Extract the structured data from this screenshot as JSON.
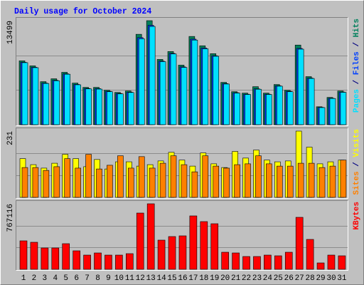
{
  "chart_data": [
    {
      "type": "bar",
      "title": "Daily usage for October 2024",
      "ylim": [
        0,
        13499
      ],
      "yticks": [
        13499
      ],
      "grid": true,
      "legend_separator": " / ",
      "series": [
        {
          "name": "Hits",
          "color": "#00805c",
          "values": [
            8286,
            7634,
            5586,
            5958,
            6796,
            5400,
            4841,
            4841,
            4469,
            4189,
            4375,
            11730,
            13499,
            8472,
            9496,
            7727,
            11451,
            10241,
            9216,
            5493,
            4282,
            4096,
            4934,
            4096,
            5213,
            4469,
            10334,
            6237,
            2327,
            3538,
            4375
          ]
        },
        {
          "name": "Files",
          "color": "#0040ff",
          "values": [
            8100,
            7450,
            5400,
            5760,
            6600,
            5230,
            4700,
            4680,
            4330,
            4050,
            4230,
            11300,
            12900,
            8250,
            9250,
            7500,
            11100,
            9950,
            8950,
            5330,
            4150,
            3960,
            4650,
            3960,
            5050,
            4330,
            9900,
            6050,
            2250,
            3430,
            4240
          ]
        },
        {
          "name": "Pages",
          "color": "#00e0ff",
          "values": [
            8050,
            7400,
            5350,
            5700,
            6550,
            5180,
            4650,
            4620,
            4280,
            4000,
            4180,
            11150,
            12750,
            8180,
            9180,
            7430,
            10980,
            9850,
            8880,
            5280,
            4100,
            3920,
            4600,
            3920,
            5000,
            4280,
            9800,
            6000,
            2220,
            3400,
            4200
          ]
        }
      ]
    },
    {
      "type": "bar",
      "ylim": [
        0,
        231
      ],
      "yticks": [
        231
      ],
      "grid": true,
      "legend_separator": " / ",
      "series": [
        {
          "name": "Visits",
          "color": "#ffff00",
          "values": [
            135,
            114,
            102,
            119,
            150,
            135,
            107,
            132,
            99,
            124,
            124,
            109,
            114,
            127,
            157,
            130,
            109,
            155,
            117,
            104,
            160,
            137,
            165,
            130,
            124,
            127,
            231,
            175,
            117,
            124,
            130
          ]
        },
        {
          "name": "Sites",
          "color": "#ff8000",
          "values": [
            104,
            104,
            94,
            107,
            135,
            102,
            150,
            99,
            112,
            145,
            102,
            142,
            102,
            119,
            145,
            114,
            89,
            145,
            109,
            102,
            114,
            117,
            145,
            117,
            109,
            109,
            119,
            119,
            104,
            109,
            130
          ]
        }
      ]
    },
    {
      "type": "bar",
      "ylim": [
        0,
        767116
      ],
      "yticks": [
        767116
      ],
      "grid": true,
      "categories": [
        "1",
        "2",
        "3",
        "4",
        "5",
        "6",
        "7",
        "8",
        "9",
        "10",
        "11",
        "12",
        "13",
        "14",
        "15",
        "16",
        "17",
        "18",
        "19",
        "20",
        "21",
        "22",
        "23",
        "24",
        "25",
        "26",
        "27",
        "28",
        "29",
        "30",
        "31"
      ],
      "category_label_colors": [
        "#000",
        "#000",
        "#000",
        "#000",
        "#00805c",
        "#00805c",
        "#000",
        "#000",
        "#000",
        "#000",
        "#000",
        "#00805c",
        "#00805c",
        "#000",
        "#000",
        "#000",
        "#000",
        "#000",
        "#00805c",
        "#00805c",
        "#000",
        "#000",
        "#000",
        "#000",
        "#000",
        "#00805c",
        "#00805c",
        "#000",
        "#000",
        "#000",
        "#000"
      ],
      "series": [
        {
          "name": "KBytes",
          "color": "#ff0000",
          "values": [
            333529,
            316852,
            250147,
            250147,
            300176,
            216793,
            166764,
            191779,
            166764,
            166764,
            183441,
            658730,
            767116,
            341866,
            383558,
            391898,
            625365,
            558660,
            533645,
            200117,
            191779,
            150088,
            150088,
            166764,
            158426,
            200117,
            608688,
            350206,
            75044,
            166764,
            158426
          ]
        }
      ]
    }
  ]
}
